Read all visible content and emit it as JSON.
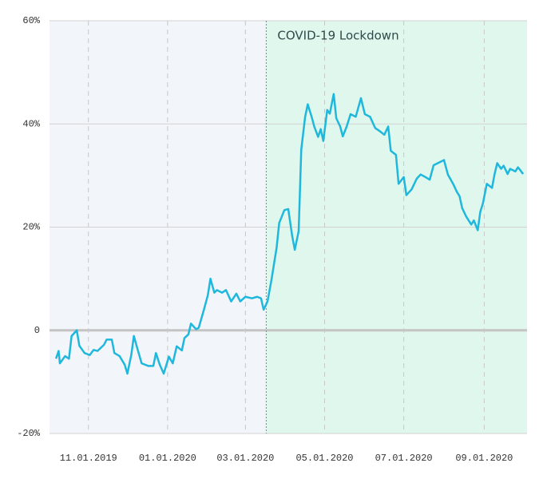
{
  "chart_data": {
    "type": "line",
    "annotation": {
      "label": "COVID-19 Lockdown",
      "start": "2020-03-17"
    },
    "x": [
      "2019-10-07",
      "2019-10-09",
      "2019-10-10",
      "2019-10-14",
      "2019-10-17",
      "2019-10-19",
      "2019-10-23",
      "2019-10-25",
      "2019-10-29",
      "2019-11-02",
      "2019-11-05",
      "2019-11-08",
      "2019-11-13",
      "2019-11-15",
      "2019-11-19",
      "2019-11-21",
      "2019-11-25",
      "2019-11-29",
      "2019-12-01",
      "2019-12-04",
      "2019-12-06",
      "2019-12-09",
      "2019-12-12",
      "2019-12-17",
      "2019-12-21",
      "2019-12-23",
      "2019-12-26",
      "2019-12-29",
      "2020-01-02",
      "2020-01-05",
      "2020-01-08",
      "2020-01-12",
      "2020-01-14",
      "2020-01-17",
      "2020-01-19",
      "2020-01-23",
      "2020-01-25",
      "2020-01-29",
      "2020-02-01",
      "2020-02-03",
      "2020-02-06",
      "2020-02-08",
      "2020-02-12",
      "2020-02-15",
      "2020-02-19",
      "2020-02-23",
      "2020-02-26",
      "2020-03-01",
      "2020-03-06",
      "2020-03-10",
      "2020-03-13",
      "2020-03-15",
      "2020-03-18",
      "2020-03-21",
      "2020-03-25",
      "2020-03-27",
      "2020-03-31",
      "2020-04-03",
      "2020-04-06",
      "2020-04-08",
      "2020-04-11",
      "2020-04-13",
      "2020-04-16",
      "2020-04-18",
      "2020-04-21",
      "2020-04-23",
      "2020-04-26",
      "2020-04-28",
      "2020-04-30",
      "2020-05-03",
      "2020-05-05",
      "2020-05-08",
      "2020-05-10",
      "2020-05-13",
      "2020-05-15",
      "2020-05-18",
      "2020-05-21",
      "2020-05-25",
      "2020-05-29",
      "2020-06-01",
      "2020-06-05",
      "2020-06-09",
      "2020-06-12",
      "2020-06-16",
      "2020-06-19",
      "2020-06-21",
      "2020-06-25",
      "2020-06-27",
      "2020-07-01",
      "2020-07-03",
      "2020-07-07",
      "2020-07-11",
      "2020-07-14",
      "2020-07-17",
      "2020-07-21",
      "2020-07-24",
      "2020-07-28",
      "2020-08-01",
      "2020-08-04",
      "2020-08-08",
      "2020-08-11",
      "2020-08-13",
      "2020-08-15",
      "2020-08-18",
      "2020-08-22",
      "2020-08-24",
      "2020-08-27",
      "2020-08-29",
      "2020-08-31",
      "2020-09-03",
      "2020-09-07",
      "2020-09-09",
      "2020-09-11",
      "2020-09-14",
      "2020-09-16",
      "2020-09-19",
      "2020-09-21",
      "2020-09-25",
      "2020-09-27",
      "2020-10-01"
    ],
    "series": [
      {
        "color": "#1fb8dc",
        "values": [
          -5.5,
          -4,
          -6.4,
          -5,
          -5.5,
          -1.1,
          0,
          -3,
          -4.4,
          -4.8,
          -3.8,
          -4,
          -2.8,
          -1.8,
          -1.8,
          -4.4,
          -5,
          -6.7,
          -8.4,
          -4.8,
          -1.1,
          -3.8,
          -6.4,
          -6.9,
          -6.9,
          -4.4,
          -6.7,
          -8.4,
          -5.1,
          -6.4,
          -3.1,
          -3.9,
          -1.5,
          -0.8,
          1.3,
          0.2,
          0.5,
          4,
          6.8,
          10,
          7.3,
          7.8,
          7.3,
          7.8,
          5.6,
          7.1,
          5.6,
          6.5,
          6.2,
          6.5,
          6.2,
          4,
          5.6,
          9.7,
          16,
          20.8,
          23.3,
          23.5,
          18.3,
          15.6,
          19.2,
          35,
          41.4,
          43.8,
          41.4,
          39.5,
          37.5,
          39,
          36.7,
          42.7,
          42,
          45.8,
          41.1,
          39.5,
          37.6,
          39.5,
          41.9,
          41.4,
          45,
          41.9,
          41.4,
          39.2,
          38.7,
          37.9,
          39.5,
          34.8,
          34,
          28.4,
          29.7,
          26.2,
          27.3,
          29.4,
          30.2,
          29.8,
          29.2,
          32,
          32.5,
          33,
          30.2,
          28.4,
          26.8,
          26,
          23.7,
          22.1,
          20.5,
          21.3,
          19.4,
          23,
          24.6,
          28.4,
          27.6,
          30.3,
          32.4,
          31.3,
          31.9,
          30.3,
          31.3,
          30.8,
          31.6,
          30.3
        ]
      }
    ],
    "xlim": [
      "2019-10-02",
      "2020-10-04"
    ],
    "xticks": [
      {
        "value": "2019-11-01",
        "label": "11.01.2019"
      },
      {
        "value": "2020-01-01",
        "label": "01.01.2020"
      },
      {
        "value": "2020-03-01",
        "label": "03.01.2020"
      },
      {
        "value": "2020-05-01",
        "label": "05.01.2020"
      },
      {
        "value": "2020-07-01",
        "label": "07.01.2020"
      },
      {
        "value": "2020-09-01",
        "label": "09.01.2020"
      }
    ],
    "ylim": [
      -20,
      60
    ],
    "yticks": [
      {
        "value": -20,
        "label": "-20%"
      },
      0,
      {
        "value": 20,
        "label": "20%"
      },
      {
        "value": 40,
        "label": "40%"
      },
      {
        "value": 60,
        "label": "60%"
      }
    ],
    "grid": true
  }
}
